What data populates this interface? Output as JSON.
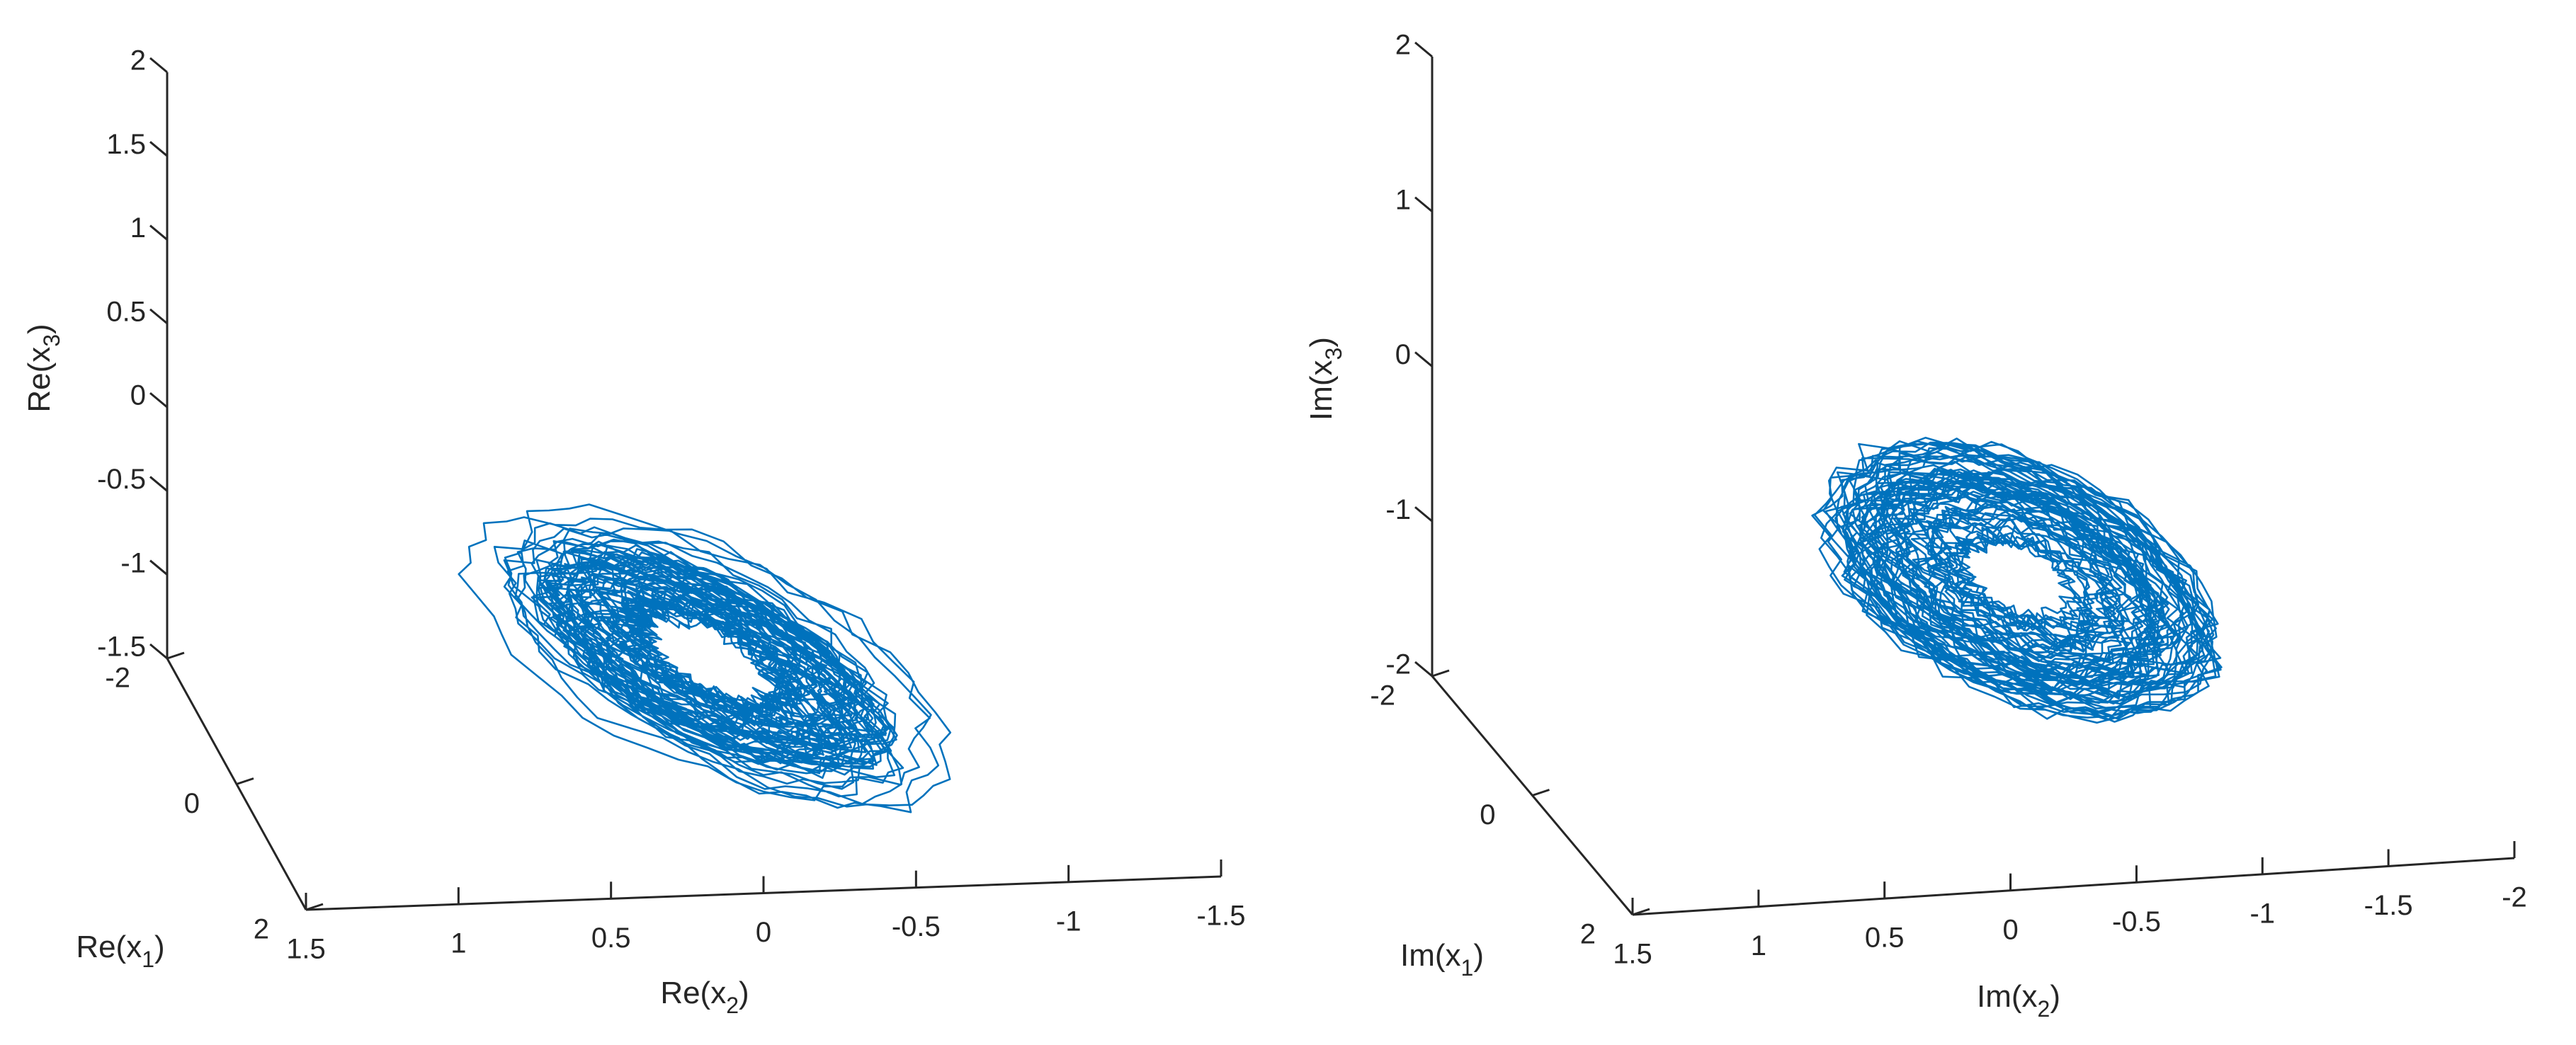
{
  "chart_data": [
    {
      "type": "line",
      "subtype": "3d-phase-portrait",
      "title": "",
      "xlabel": "Re(x1)",
      "ylabel": "Re(x2)",
      "zlabel": "Re(x3)",
      "axis_labels": {
        "x": {
          "prefix": "Re(x",
          "sub": "1",
          "suffix": ")"
        },
        "y": {
          "prefix": "Re(x",
          "sub": "2",
          "suffix": ")"
        },
        "z": {
          "prefix": "Re(x",
          "sub": "3",
          "suffix": ")"
        }
      },
      "xlim": [
        -2,
        2
      ],
      "ylim": [
        -1.5,
        1.5
      ],
      "zlim": [
        -1.5,
        2
      ],
      "xticks": [
        "-2",
        "0",
        "2"
      ],
      "yticks": [
        "1.5",
        "1",
        "0.5",
        "0",
        "-0.5",
        "-1",
        "-1.5"
      ],
      "zticks": [
        "-1.5",
        "-1",
        "-0.5",
        "0",
        "0.5",
        "1",
        "1.5",
        "2"
      ],
      "line_color": "#0072BD",
      "grid": false,
      "series": [
        {
          "center": {
            "u": 0.25,
            "v": -0.55
          },
          "semi_major": 1.1,
          "semi_minor": 0.45,
          "tilt_deg": -28,
          "hole_radius_fraction": 0.18,
          "jitter": 0.1,
          "samples": 3200,
          "windings": 65
        }
      ]
    },
    {
      "type": "line",
      "subtype": "3d-phase-portrait",
      "title": "",
      "xlabel": "Im(x1)",
      "ylabel": "Im(x2)",
      "zlabel": "Im(x3)",
      "axis_labels": {
        "x": {
          "prefix": "Im(x",
          "sub": "1",
          "suffix": ")"
        },
        "y": {
          "prefix": "Im(x",
          "sub": "2",
          "suffix": ")"
        },
        "z": {
          "prefix": "Im(x",
          "sub": "3",
          "suffix": ")"
        }
      },
      "xlim": [
        -2,
        2
      ],
      "ylim": [
        -2,
        1.5
      ],
      "zlim": [
        -2,
        2
      ],
      "xticks": [
        "-2",
        "0",
        "2"
      ],
      "yticks": [
        "1.5",
        "1",
        "0.5",
        "0",
        "-0.5",
        "-1",
        "-1.5",
        "-2"
      ],
      "zticks": [
        "-2",
        "-1",
        "0",
        "1",
        "2"
      ],
      "line_color": "#0072BD",
      "grid": false,
      "series": [
        {
          "center": {
            "u": 0.2,
            "v": -0.35
          },
          "semi_major": 0.95,
          "semi_minor": 0.52,
          "tilt_deg": -25,
          "hole_radius_fraction": 0.2,
          "jitter": 0.12,
          "samples": 3200,
          "windings": 65
        }
      ]
    }
  ]
}
